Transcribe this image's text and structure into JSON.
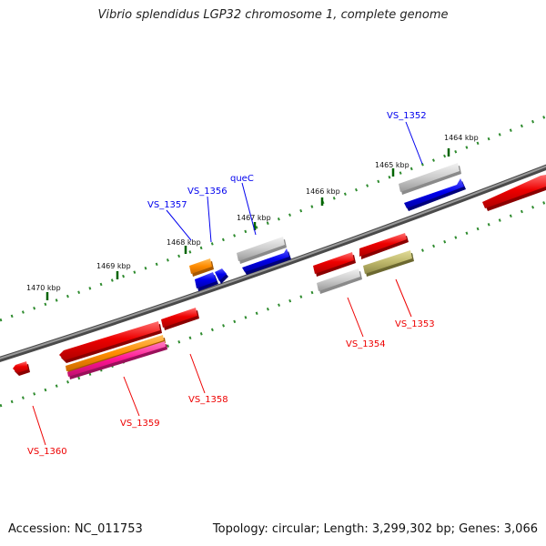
{
  "title": "Vibrio splendidus LGP32 chromosome 1, complete genome",
  "footer": {
    "accession": "Accession: NC_011753",
    "summary": "Topology: circular; Length: 3,299,302 bp; Genes: 3,066"
  },
  "ticks": [
    "1464 kbp",
    "1465 kbp",
    "1466 kbp",
    "1467 kbp",
    "1468 kbp",
    "1469 kbp",
    "1470 kbp"
  ],
  "labels": {
    "top": [
      "VS_1352",
      "queC",
      "VS_1356",
      "VS_1357"
    ],
    "bottom": [
      "VS_1353",
      "VS_1354",
      "VS_1358",
      "VS_1359",
      "VS_1360"
    ]
  },
  "colors": {
    "forward_label": "#0000ee",
    "reverse_label": "#ee0000",
    "gene_red": "#ee0000",
    "gene_blue": "#0000ee",
    "gene_grey": "#bbbbbb",
    "gene_orange": "#ff8c00",
    "gene_olive": "#bdb76b",
    "gene_pink": "#ff1493",
    "backbone": "#777777",
    "tick_green": "#006400"
  }
}
